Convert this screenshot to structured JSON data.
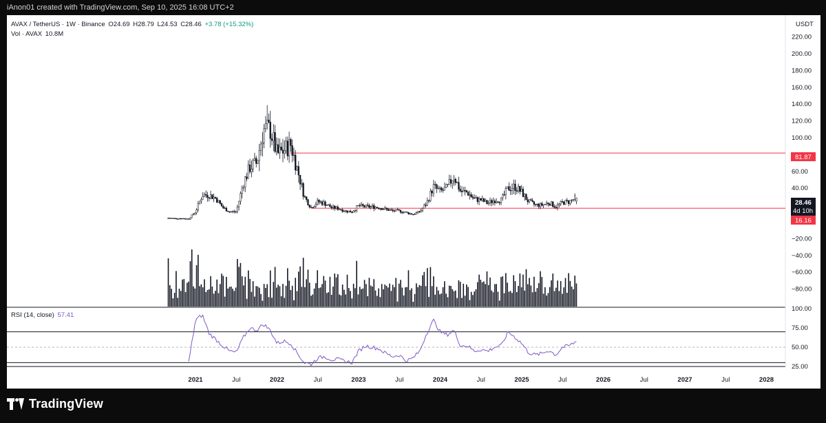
{
  "credit": "iAnon01 created with TradingView.com, Sep 10, 2025 16:08 UTC+2",
  "brand": "TradingView",
  "colors": {
    "up": "#089981",
    "down": "#f23645",
    "candle": "#131722",
    "level": "#f23645",
    "rsi": "#7e57c2",
    "rsi_fill": "#089981"
  },
  "legend": {
    "symbol": "AVAX / TetherUS · 1W · Binance",
    "open": "O24.69",
    "high": "H28.79",
    "low": "L24.53",
    "close": "C28.46",
    "change": "+3.78 (+15.32%)",
    "vol_label": "Vol · AVAX",
    "vol_value": "10.8M",
    "rsi_label": "RSI (14, close)",
    "rsi_value": "57.41"
  },
  "axis": {
    "currency": "USDT",
    "price_ticks": [
      "220.00",
      "200.00",
      "180.00",
      "160.00",
      "140.00",
      "120.00",
      "100.00",
      "80.00",
      "60.00",
      "40.00",
      "20.00",
      "0.00",
      "−20.00",
      "−40.00",
      "−60.00",
      "−80.00"
    ],
    "rsi_ticks": [
      "100.00",
      "75.00",
      "50.00",
      "25.00"
    ],
    "time_labels": [
      "2021",
      "Jul",
      "2022",
      "Jul",
      "2023",
      "Jul",
      "2024",
      "Jul",
      "2025",
      "Jul",
      "2026",
      "Jul",
      "2027",
      "Jul",
      "2028"
    ]
  },
  "badges": {
    "resistance": "81.87",
    "price": "28.46",
    "countdown": "4d 10h",
    "support": "16.16"
  },
  "chart_data": [
    {
      "type": "candlestick",
      "title": "AVAX / TetherUS · 1W · Binance",
      "x_range": [
        "2020-09",
        "2028-02"
      ],
      "ylim": [
        -100,
        230
      ],
      "levels": [
        81.87,
        16.16
      ],
      "last": {
        "open": 24.69,
        "high": 28.79,
        "low": 24.53,
        "close": 28.46
      },
      "monthly_close": [
        [
          "2020-09",
          4.5
        ],
        [
          "2020-10",
          4
        ],
        [
          "2020-11",
          4
        ],
        [
          "2020-12",
          3.5
        ],
        [
          "2021-01",
          12
        ],
        [
          "2021-02",
          32
        ],
        [
          "2021-03",
          32
        ],
        [
          "2021-04",
          28
        ],
        [
          "2021-05",
          17
        ],
        [
          "2021-06",
          12
        ],
        [
          "2021-07",
          12
        ],
        [
          "2021-08",
          45
        ],
        [
          "2021-09",
          65
        ],
        [
          "2021-10",
          70
        ],
        [
          "2021-11",
          110
        ],
        [
          "2021-12",
          110
        ],
        [
          "2022-01",
          80
        ],
        [
          "2022-02",
          85
        ],
        [
          "2022-03",
          92
        ],
        [
          "2022-04",
          62
        ],
        [
          "2022-05",
          30
        ],
        [
          "2022-06",
          17
        ],
        [
          "2022-07",
          24
        ],
        [
          "2022-08",
          22
        ],
        [
          "2022-09",
          17
        ],
        [
          "2022-10",
          16
        ],
        [
          "2022-11",
          13
        ],
        [
          "2022-12",
          12
        ],
        [
          "2023-01",
          19
        ],
        [
          "2023-02",
          18
        ],
        [
          "2023-03",
          18
        ],
        [
          "2023-04",
          17
        ],
        [
          "2023-05",
          15
        ],
        [
          "2023-06",
          13
        ],
        [
          "2023-07",
          13
        ],
        [
          "2023-08",
          11
        ],
        [
          "2023-09",
          9
        ],
        [
          "2023-10",
          12
        ],
        [
          "2023-11",
          22
        ],
        [
          "2023-12",
          42
        ],
        [
          "2024-01",
          36
        ],
        [
          "2024-02",
          40
        ],
        [
          "2024-03",
          55
        ],
        [
          "2024-04",
          36
        ],
        [
          "2024-05",
          35
        ],
        [
          "2024-06",
          27
        ],
        [
          "2024-07",
          26
        ],
        [
          "2024-08",
          22
        ],
        [
          "2024-09",
          26
        ],
        [
          "2024-10",
          26
        ],
        [
          "2024-11",
          40
        ],
        [
          "2024-12",
          42
        ],
        [
          "2025-01",
          35
        ],
        [
          "2025-02",
          24
        ],
        [
          "2025-03",
          20
        ],
        [
          "2025-04",
          20
        ],
        [
          "2025-05",
          23
        ],
        [
          "2025-06",
          18
        ],
        [
          "2025-07",
          23
        ],
        [
          "2025-08",
          24
        ],
        [
          "2025-09",
          28.46
        ]
      ]
    },
    {
      "type": "bar",
      "title": "Vol · AVAX",
      "last": "10.8M"
    },
    {
      "type": "line",
      "title": "RSI (14, close)",
      "ylim": [
        25,
        100
      ],
      "bands": [
        30,
        70
      ],
      "last": 57.41,
      "monthly_rsi": [
        [
          "2020-12",
          30
        ],
        [
          "2021-01",
          85
        ],
        [
          "2021-02",
          92
        ],
        [
          "2021-03",
          68
        ],
        [
          "2021-04",
          60
        ],
        [
          "2021-05",
          52
        ],
        [
          "2021-06",
          45
        ],
        [
          "2021-07",
          43
        ],
        [
          "2021-08",
          62
        ],
        [
          "2021-09",
          75
        ],
        [
          "2021-10",
          72
        ],
        [
          "2021-11",
          80
        ],
        [
          "2021-12",
          72
        ],
        [
          "2022-01",
          55
        ],
        [
          "2022-02",
          58
        ],
        [
          "2022-03",
          55
        ],
        [
          "2022-04",
          42
        ],
        [
          "2022-05",
          30
        ],
        [
          "2022-06",
          28
        ],
        [
          "2022-07",
          36
        ],
        [
          "2022-08",
          38
        ],
        [
          "2022-09",
          34
        ],
        [
          "2022-10",
          34
        ],
        [
          "2022-11",
          32
        ],
        [
          "2022-12",
          30
        ],
        [
          "2023-01",
          45
        ],
        [
          "2023-02",
          52
        ],
        [
          "2023-03",
          50
        ],
        [
          "2023-04",
          48
        ],
        [
          "2023-05",
          42
        ],
        [
          "2023-06",
          38
        ],
        [
          "2023-07",
          40
        ],
        [
          "2023-08",
          32
        ],
        [
          "2023-09",
          36
        ],
        [
          "2023-10",
          45
        ],
        [
          "2023-11",
          68
        ],
        [
          "2023-12",
          85
        ],
        [
          "2024-01",
          70
        ],
        [
          "2024-02",
          66
        ],
        [
          "2024-03",
          72
        ],
        [
          "2024-04",
          52
        ],
        [
          "2024-05",
          52
        ],
        [
          "2024-06",
          45
        ],
        [
          "2024-07",
          47
        ],
        [
          "2024-08",
          45
        ],
        [
          "2024-09",
          50
        ],
        [
          "2024-10",
          52
        ],
        [
          "2024-11",
          70
        ],
        [
          "2024-12",
          63
        ],
        [
          "2025-01",
          55
        ],
        [
          "2025-02",
          43
        ],
        [
          "2025-03",
          40
        ],
        [
          "2025-04",
          42
        ],
        [
          "2025-05",
          46
        ],
        [
          "2025-06",
          40
        ],
        [
          "2025-07",
          50
        ],
        [
          "2025-08",
          52
        ],
        [
          "2025-09",
          57.41
        ]
      ]
    }
  ]
}
